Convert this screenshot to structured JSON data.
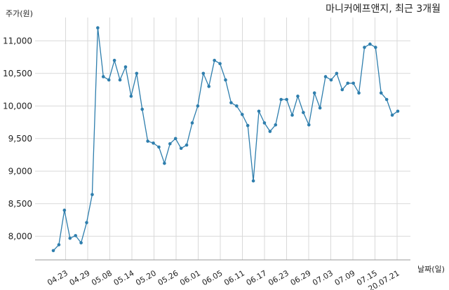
{
  "chart_data": {
    "type": "line",
    "title": "마니커에프앤지, 최근 3개월",
    "ylabel": "주가(원)",
    "xlabel": "날짜(일)",
    "ylim": [
      7600,
      11400
    ],
    "yticks": [
      8000,
      8500,
      9000,
      9500,
      10000,
      10500,
      11000
    ],
    "ytick_labels": [
      "8,000",
      "8,500",
      "9,000",
      "9,500",
      "10,000",
      "10,500",
      "11,000"
    ],
    "x_tick_labels": [
      "04.23",
      "04.29",
      "05.08",
      "05.14",
      "05.20",
      "05.26",
      "06.01",
      "06.05",
      "06.11",
      "06.17",
      "06.23",
      "06.29",
      "07.03",
      "07.09",
      "07.15",
      "20.07.21"
    ],
    "grid": "vertical",
    "line_color": "#2e7ead",
    "series": [
      {
        "values": [
          7780,
          7870,
          8400,
          7970,
          8010,
          7900,
          8210,
          8640,
          11200,
          10450,
          10400,
          10700,
          10400,
          10600,
          10150,
          10500,
          9950,
          9460,
          9430,
          9370,
          9120,
          9420,
          9500,
          9350,
          9400,
          9740,
          10000,
          10500,
          10300,
          10700,
          10650,
          10400,
          10050,
          10000,
          9870,
          9700,
          8850,
          9920,
          9740,
          9610,
          9710,
          10100,
          10100,
          9860,
          10150,
          9900,
          9710,
          10200,
          9970,
          10450,
          10400,
          10500,
          10250,
          10350,
          10350,
          10200,
          10900,
          10950,
          10900,
          10200,
          10100,
          9860,
          9920
        ]
      }
    ]
  }
}
